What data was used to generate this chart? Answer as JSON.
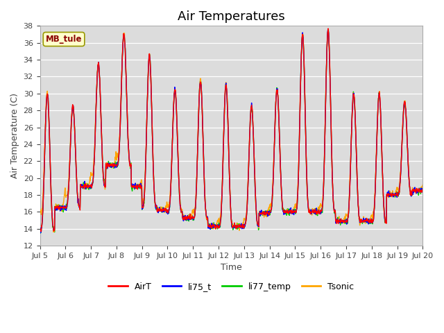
{
  "title": "Air Temperatures",
  "xlabel": "Time",
  "ylabel": "Air Temperature (C)",
  "ylim": [
    12,
    38
  ],
  "yticks": [
    12,
    14,
    16,
    18,
    20,
    22,
    24,
    26,
    28,
    30,
    32,
    34,
    36,
    38
  ],
  "colors": {
    "AirT": "#FF0000",
    "li75_t": "#0000FF",
    "li77_temp": "#00CC00",
    "Tsonic": "#FFA500"
  },
  "legend_labels": [
    "AirT",
    "li75_t",
    "li77_temp",
    "Tsonic"
  ],
  "station_label": "MB_tule",
  "station_label_color": "#8B0000",
  "station_box_color": "#FFFFCC",
  "background_color": "#DCDCDC",
  "grid_color": "#FFFFFF",
  "title_fontsize": 13,
  "axis_label_fontsize": 9,
  "tick_label_fontsize": 8,
  "xtick_labels": [
    "Jul 5",
    "Jul 6",
    "Jul 7",
    "Jul 8",
    "Jul 9",
    "Jul 10",
    "Jul 11",
    "Jul 12",
    "Jul 13",
    "Jul 14",
    "Jul 15",
    "Jul 16",
    "Jul 17",
    "Jul 18",
    "Jul 19",
    "Jul 20"
  ],
  "n_days": 15,
  "pts_per_day": 96,
  "day_peaks": [
    30.0,
    28.5,
    33.5,
    37.0,
    34.5,
    30.5,
    31.5,
    31.0,
    28.5,
    30.5,
    37.0,
    37.5,
    30.0,
    30.0,
    29.0
  ],
  "day_mins_am": [
    13.8,
    16.5,
    19.0,
    21.5,
    16.5,
    16.0,
    15.2,
    14.2,
    14.4,
    16.0,
    16.0,
    16.0,
    14.8,
    14.8,
    18.0
  ],
  "day_mins_pm": [
    16.5,
    19.0,
    21.5,
    19.0,
    16.2,
    15.3,
    14.3,
    14.3,
    15.8,
    16.0,
    16.0,
    14.9,
    14.9,
    18.0,
    18.5
  ],
  "tsonic_night_offset": [
    2.5,
    1.5,
    1.5,
    1.0,
    1.0,
    0.8,
    0.8,
    0.8,
    0.8,
    0.8,
    0.8,
    0.8,
    0.8,
    0.8,
    0.8
  ],
  "peak_sharpness": 3.5
}
